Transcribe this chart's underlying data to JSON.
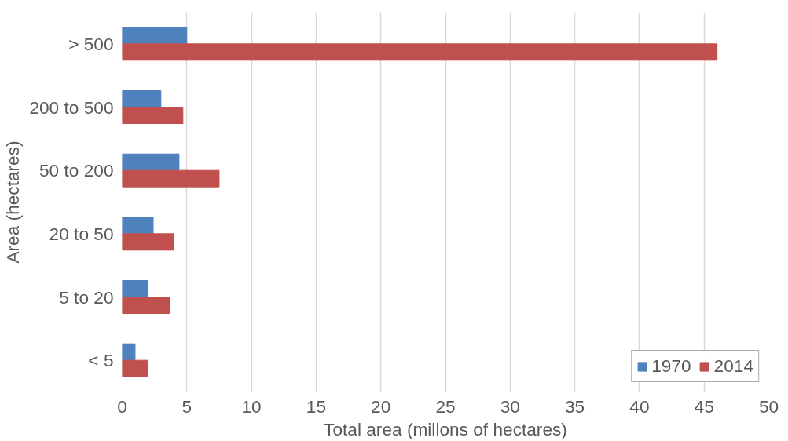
{
  "chart_data": {
    "type": "bar",
    "orientation": "horizontal",
    "xlabel": "Total area (millons of hectares)",
    "ylabel": "Area (hectares)",
    "categories": [
      "> 500",
      "200 to 500",
      "50 to 200",
      "20 to 50",
      "5 to 20",
      "< 5"
    ],
    "series": [
      {
        "name": "1970",
        "color": "#4f81bd",
        "values": [
          5.0,
          3.0,
          4.4,
          2.4,
          2.0,
          1.0
        ]
      },
      {
        "name": "2014",
        "color": "#c0504d",
        "values": [
          46,
          4.7,
          7.5,
          4.0,
          3.7,
          2.0
        ]
      }
    ],
    "xlim": [
      0,
      50
    ],
    "xticks": [
      0,
      5,
      10,
      15,
      20,
      25,
      30,
      35,
      40,
      45,
      50
    ],
    "grid": "x",
    "legend": "bottom right"
  }
}
